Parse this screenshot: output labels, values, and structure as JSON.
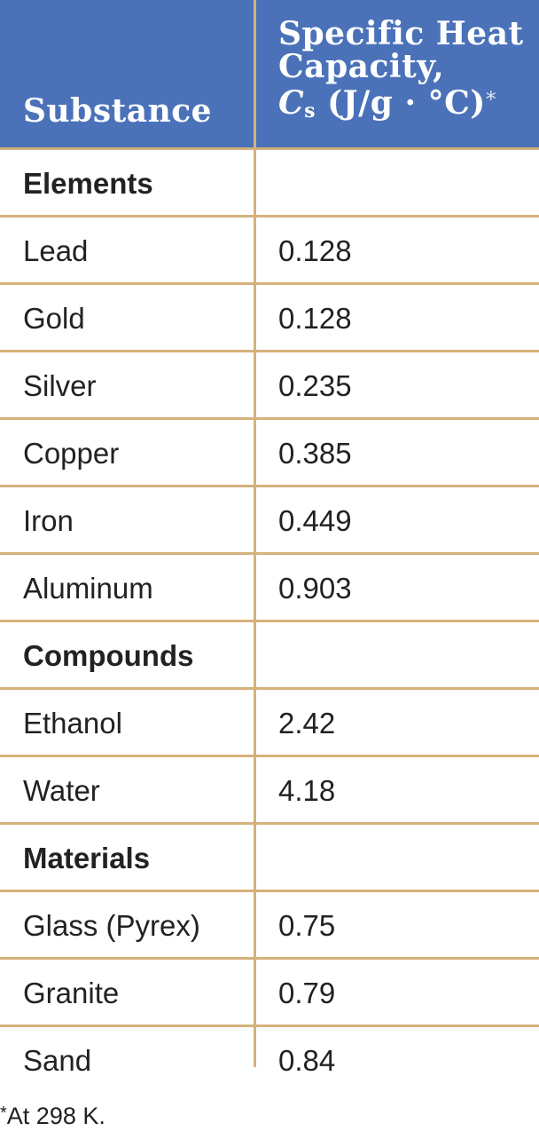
{
  "header": {
    "substance": "Substance",
    "capacity_line1": "Specific Heat",
    "capacity_line2": "Capacity,",
    "capacity_symbol": "C",
    "capacity_subscript": "s",
    "capacity_unit": "(J/g · °C)",
    "capacity_mark": "*"
  },
  "rows": [
    {
      "name": "Elements",
      "value": "",
      "group": true
    },
    {
      "name": "Lead",
      "value": "0.128"
    },
    {
      "name": "Gold",
      "value": "0.128"
    },
    {
      "name": "Silver",
      "value": "0.235"
    },
    {
      "name": "Copper",
      "value": "0.385"
    },
    {
      "name": "Iron",
      "value": "0.449"
    },
    {
      "name": "Aluminum",
      "value": "0.903"
    },
    {
      "name": "Compounds",
      "value": "",
      "group": true
    },
    {
      "name": "Ethanol",
      "value": "2.42"
    },
    {
      "name": "Water",
      "value": "4.18"
    },
    {
      "name": "Materials",
      "value": "",
      "group": true
    },
    {
      "name": "Glass (Pyrex)",
      "value": "0.75"
    },
    {
      "name": "Granite",
      "value": "0.79"
    },
    {
      "name": "Sand",
      "value": "0.84"
    }
  ],
  "footnote": {
    "mark": "*",
    "text": "At 298 K."
  },
  "colors": {
    "header_bg": "#4b72b9",
    "rule": "#d4b27c",
    "text": "#222222"
  }
}
